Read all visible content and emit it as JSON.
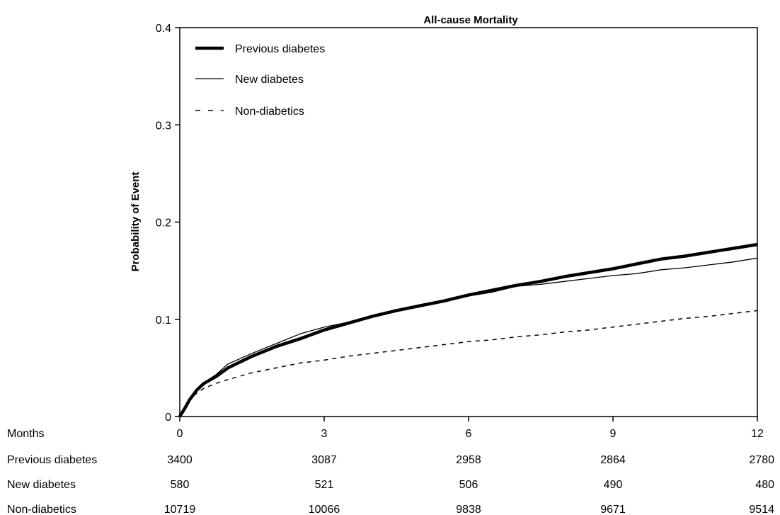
{
  "chart_data": {
    "type": "line",
    "title": "All-cause Mortality",
    "xlabel": "Months",
    "ylabel": "Probability of Event",
    "xlim": [
      0,
      12
    ],
    "ylim": [
      0,
      0.4
    ],
    "x_ticks": [
      0,
      3,
      6,
      9,
      12
    ],
    "x_tick_labels": [
      "0",
      "3",
      "6",
      "9",
      "12"
    ],
    "y_ticks": [
      0,
      0.1,
      0.2,
      0.3,
      0.4
    ],
    "y_tick_labels": [
      "0",
      "0.1",
      "0.2",
      "0.3",
      "0.4"
    ],
    "grid": false,
    "legend_position": "top-left",
    "series": [
      {
        "name": "Previous diabetes",
        "style": "thick-solid",
        "x": [
          0,
          0.1,
          0.2,
          0.35,
          0.5,
          0.75,
          1,
          1.5,
          2,
          2.5,
          3,
          3.5,
          4,
          4.5,
          5,
          5.5,
          6,
          6.5,
          7,
          7.5,
          8,
          8.5,
          9,
          9.5,
          10,
          10.5,
          11,
          11.5,
          12
        ],
        "y": [
          0,
          0.008,
          0.017,
          0.027,
          0.034,
          0.041,
          0.05,
          0.062,
          0.072,
          0.08,
          0.089,
          0.096,
          0.103,
          0.109,
          0.114,
          0.119,
          0.125,
          0.13,
          0.135,
          0.139,
          0.144,
          0.148,
          0.152,
          0.157,
          0.162,
          0.165,
          0.169,
          0.173,
          0.177
        ]
      },
      {
        "name": "New diabetes",
        "style": "thin-solid",
        "x": [
          0,
          0.1,
          0.2,
          0.35,
          0.5,
          0.75,
          1,
          1.5,
          2,
          2.5,
          3,
          3.5,
          4,
          4.5,
          5,
          5.5,
          6,
          6.5,
          7,
          7.5,
          8,
          8.5,
          9,
          9.5,
          10,
          10.5,
          11,
          11.5,
          12
        ],
        "y": [
          0,
          0.01,
          0.018,
          0.028,
          0.035,
          0.043,
          0.054,
          0.065,
          0.075,
          0.085,
          0.092,
          0.097,
          0.102,
          0.108,
          0.113,
          0.118,
          0.124,
          0.128,
          0.134,
          0.136,
          0.139,
          0.142,
          0.145,
          0.147,
          0.151,
          0.153,
          0.156,
          0.159,
          0.163
        ]
      },
      {
        "name": "Non-diabetics",
        "style": "dashed",
        "x": [
          0,
          0.1,
          0.2,
          0.35,
          0.5,
          0.75,
          1,
          1.5,
          2,
          2.5,
          3,
          3.5,
          4,
          4.5,
          5,
          5.5,
          6,
          6.5,
          7,
          7.5,
          8,
          8.5,
          9,
          9.5,
          10,
          10.5,
          11,
          11.5,
          12
        ],
        "y": [
          0,
          0.01,
          0.017,
          0.024,
          0.029,
          0.034,
          0.038,
          0.045,
          0.05,
          0.055,
          0.058,
          0.062,
          0.065,
          0.068,
          0.071,
          0.074,
          0.077,
          0.079,
          0.082,
          0.084,
          0.087,
          0.089,
          0.092,
          0.095,
          0.098,
          0.101,
          0.103,
          0.106,
          0.109
        ]
      }
    ],
    "risk_table": {
      "header_label": "Months",
      "rows": [
        {
          "label": "Previous diabetes",
          "values": [
            "3400",
            "3087",
            "2958",
            "2864",
            "2780"
          ]
        },
        {
          "label": "New diabetes",
          "values": [
            "580",
            "521",
            "506",
            "490",
            "480"
          ]
        },
        {
          "label": "Non-diabetics",
          "values": [
            "10719",
            "10066",
            "9838",
            "9671",
            "9514"
          ]
        }
      ]
    }
  }
}
